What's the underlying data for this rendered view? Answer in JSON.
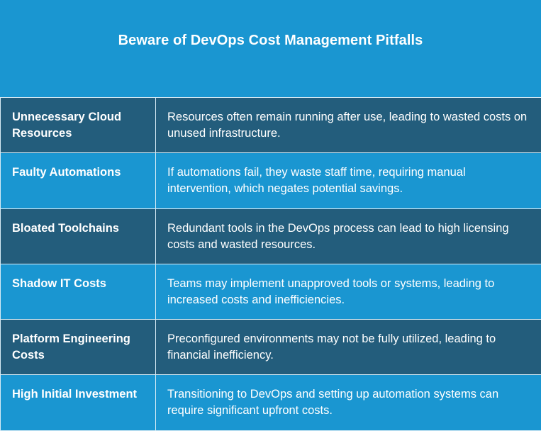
{
  "title": "Beware of DevOps Cost Management Pitfalls",
  "colors": {
    "light_blue": "#1a96d1",
    "dark_blue": "#235d7c",
    "border": "#d8ecf6"
  },
  "rows": [
    {
      "label": "Unnecessary Cloud Resources",
      "description": "Resources often remain running after use, leading to wasted costs on unused infrastructure."
    },
    {
      "label": "Faulty Automations",
      "description": "If automations fail, they waste staff time, requiring manual intervention, which negates potential savings."
    },
    {
      "label": "Bloated Toolchains",
      "description": "Redundant tools in the DevOps process can lead to high licensing costs and wasted resources."
    },
    {
      "label": "Shadow IT Costs",
      "description": "Teams may implement unapproved tools or systems, leading to increased costs and inefficiencies."
    },
    {
      "label": "Platform Engineering Costs",
      "description": "Preconfigured environments may not be fully utilized, leading to financial inefficiency."
    },
    {
      "label": "High Initial Investment",
      "description": "Transitioning to DevOps and setting up automation systems can require significant upfront costs."
    }
  ]
}
